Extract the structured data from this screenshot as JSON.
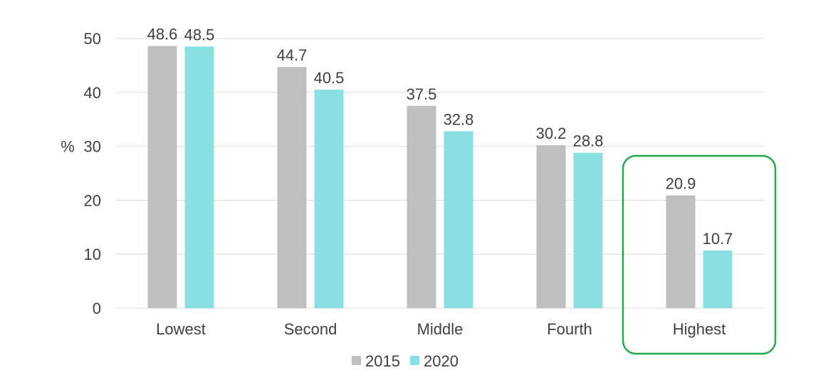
{
  "chart_data": {
    "type": "bar",
    "categories": [
      "Lowest",
      "Second",
      "Middle",
      "Fourth",
      "Highest"
    ],
    "series": [
      {
        "name": "2015",
        "values": [
          48.6,
          44.7,
          37.5,
          30.2,
          20.9
        ],
        "color": "#bfbfbf"
      },
      {
        "name": "2020",
        "values": [
          48.5,
          40.5,
          32.8,
          28.8,
          10.7
        ],
        "color": "#8ae0e0"
      }
    ],
    "title": "",
    "xlabel": "",
    "ylabel": "%",
    "ylim": [
      0,
      50
    ],
    "yticks": [
      0,
      10,
      20,
      30,
      40,
      50
    ],
    "grid": true,
    "legend_position": "bottom",
    "highlight_category": "Highest",
    "highlight_color": "#22a94a",
    "gridline_color": "#d9d9d9"
  }
}
